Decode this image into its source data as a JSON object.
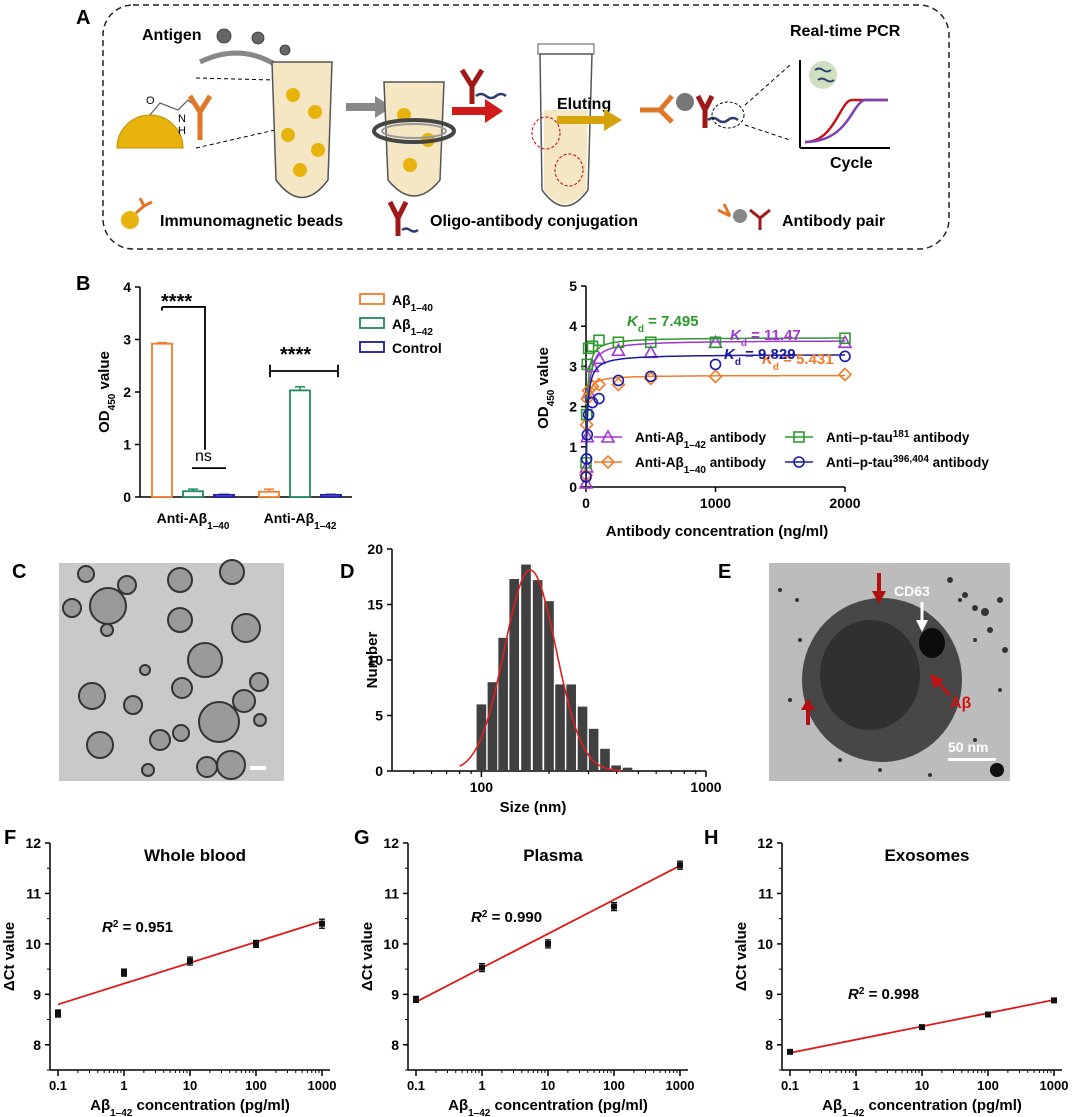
{
  "panels": {
    "A": {
      "letter": "A",
      "antigen_label": "Antigen",
      "eluting_label": "Eluting",
      "pcr_title": "Real-time PCR",
      "pcr_xlabel": "Cycle",
      "legend": [
        "Immunomagnetic beads",
        "Oligo-antibody conjugation",
        "Antibody pair"
      ],
      "chem_labels": [
        "O",
        "N",
        "H"
      ]
    },
    "B": {
      "letter": "B"
    },
    "C": {
      "letter": "C"
    },
    "D": {
      "letter": "D"
    },
    "E": {
      "letter": "E",
      "labels": {
        "cd63": "CD63",
        "abeta": "Aβ",
        "scale": "50 nm"
      }
    },
    "F": {
      "letter": "F"
    },
    "G": {
      "letter": "G"
    },
    "H": {
      "letter": "H"
    }
  },
  "chart_data": [
    {
      "id": "B-bar",
      "type": "bar",
      "ylabel_main": "OD",
      "ylabel_sub": "450",
      "ylabel_rest": " value",
      "ylim": [
        0,
        4
      ],
      "yticks": [
        "0",
        "1",
        "2",
        "3",
        "4"
      ],
      "categories": [
        {
          "main": "Anti-Aβ",
          "sub": "1–40"
        },
        {
          "main": "Anti-Aβ",
          "sub": "1–42"
        }
      ],
      "series": [
        {
          "name_main": "Aβ",
          "name_sub": "1–40",
          "color": "#f07c2a",
          "values": [
            2.92,
            0.1
          ],
          "errors": [
            0.02,
            0.05
          ]
        },
        {
          "name_main": "Aβ",
          "name_sub": "1–42",
          "color": "#1e8a5a",
          "values": [
            0.11,
            2.03
          ],
          "errors": [
            0.04,
            0.07
          ]
        },
        {
          "name_main": "Control",
          "name_sub": "",
          "color": "#1a1aa6",
          "values": [
            0.04,
            0.04
          ],
          "errors": [
            0.01,
            0.01
          ]
        }
      ],
      "annotations": [
        "****",
        "ns",
        "****"
      ]
    },
    {
      "id": "B-binding",
      "type": "scatter",
      "ylabel_main": "OD",
      "ylabel_sub": "450",
      "ylabel_rest": " value",
      "xlabel": "Antibody concentration (ng/ml)",
      "xlim": [
        0,
        2000
      ],
      "ylim": [
        0,
        5
      ],
      "xticks": [
        "0",
        "1000",
        "2000"
      ],
      "yticks": [
        "0",
        "1",
        "2",
        "3",
        "4",
        "5"
      ],
      "series": [
        {
          "name": "Anti-Aβ1-42 antibody",
          "name_main": "Anti-Aβ",
          "name_sub": "1–42",
          "name_rest": " antibody",
          "sub_type": "sub",
          "marker": "triangle",
          "color": "#a335d6",
          "kd": "11.47",
          "x": [
            0,
            5,
            10,
            20,
            50,
            100,
            250,
            500,
            1000,
            2000
          ],
          "y": [
            0.1,
            0.5,
            1.25,
            2.35,
            3.0,
            3.2,
            3.4,
            3.35,
            3.6,
            3.6
          ],
          "fit": {
            "bmax": 3.65,
            "kd": 11.47
          }
        },
        {
          "name": "Anti-Aβ1-40 antibody",
          "name_main": "Anti-Aβ",
          "name_sub": "1–40",
          "name_rest": " antibody",
          "sub_type": "sub",
          "marker": "diamond",
          "color": "#f07c2a",
          "kd": "5.431",
          "x": [
            0,
            5,
            10,
            20,
            50,
            100,
            250,
            500,
            1000,
            2000
          ],
          "y": [
            0.3,
            1.55,
            2.2,
            2.4,
            2.5,
            2.55,
            2.55,
            2.7,
            2.75,
            2.8
          ],
          "fit": {
            "bmax": 2.78,
            "kd": 5.431
          }
        },
        {
          "name": "Anti-p-tau181 antibody",
          "name_main": "Anti–p-tau",
          "name_sub": "181",
          "name_rest": " antibody",
          "sub_type": "sup",
          "marker": "square",
          "color": "#2e9a2e",
          "kd": "7.495",
          "x": [
            0,
            5,
            10,
            20,
            50,
            100,
            250,
            500,
            1000,
            2000
          ],
          "y": [
            0.6,
            1.8,
            3.05,
            3.45,
            3.5,
            3.65,
            3.6,
            3.6,
            3.6,
            3.7
          ],
          "fit": {
            "bmax": 3.72,
            "kd": 7.495
          }
        },
        {
          "name": "Anti-p-tau396,404 antibody",
          "name_main": "Anti–p-tau",
          "name_sub": "396,404",
          "name_rest": " antibody",
          "sub_type": "sup",
          "marker": "circle",
          "color": "#1a1aa6",
          "kd": "9.829",
          "x": [
            0,
            5,
            10,
            20,
            50,
            100,
            250,
            500,
            1000,
            2000
          ],
          "y": [
            0.25,
            0.7,
            1.3,
            1.8,
            2.1,
            2.2,
            2.65,
            2.75,
            3.05,
            3.25
          ],
          "fit": {
            "bmax": 3.3,
            "kd": 9.829
          }
        }
      ]
    },
    {
      "id": "D-hist",
      "type": "bar",
      "xlabel": "Size (nm)",
      "ylabel": "Number",
      "xscale": "log",
      "xlim": [
        40,
        1000
      ],
      "ylim": [
        0,
        20
      ],
      "xticks": [
        "100",
        "1000"
      ],
      "yticks": [
        "0",
        "5",
        "10",
        "15",
        "20"
      ],
      "bins": [
        100,
        112,
        125,
        140,
        158,
        178,
        200,
        224,
        251,
        282,
        316,
        355,
        398,
        447
      ],
      "counts": [
        6,
        8,
        12,
        17.3,
        18.6,
        17.2,
        15.3,
        7.8,
        7.8,
        5.8,
        3.8,
        2,
        0.5,
        0.3
      ],
      "fit_type": "gaussian",
      "fit_peak": 18.1,
      "fit_center": 165,
      "fit_color": "#e02020"
    },
    {
      "id": "F-line",
      "type": "scatter",
      "title": "Whole blood",
      "r2_label": "R",
      "r2_value": "= 0.951",
      "xlabel_main": "Aβ",
      "xlabel_sub": "1–42",
      "xlabel_rest": " concentration (pg/ml)",
      "ylabel": "ΔCt value",
      "xscale": "log",
      "xlim": [
        0.1,
        1000
      ],
      "ylim": [
        7.5,
        12
      ],
      "xticks": [
        "0.1",
        "1",
        "10",
        "100",
        "1000"
      ],
      "yticks": [
        "8",
        "9",
        "10",
        "11",
        "12"
      ],
      "x": [
        0.1,
        1,
        10,
        100,
        1000
      ],
      "y": [
        8.62,
        9.43,
        9.66,
        10.0,
        10.4
      ],
      "errors": [
        0.07,
        0.07,
        0.08,
        0.07,
        0.09
      ],
      "fit": [
        [
          0.1,
          8.8
        ],
        [
          1000,
          10.45
        ]
      ]
    },
    {
      "id": "G-line",
      "type": "scatter",
      "title": "Plasma",
      "r2_label": "R",
      "r2_value": "= 0.990",
      "xlabel_main": "Aβ",
      "xlabel_sub": "1–42",
      "xlabel_rest": " concentration (pg/ml)",
      "ylabel": "ΔCt value",
      "xscale": "log",
      "xlim": [
        0.1,
        1000
      ],
      "ylim": [
        7.5,
        12
      ],
      "xticks": [
        "0.1",
        "1",
        "10",
        "100",
        "1000"
      ],
      "yticks": [
        "8",
        "9",
        "10",
        "11",
        "12"
      ],
      "x": [
        0.1,
        1,
        10,
        100,
        1000
      ],
      "y": [
        8.9,
        9.53,
        10.0,
        10.74,
        11.56
      ],
      "errors": [
        0.06,
        0.08,
        0.08,
        0.08,
        0.08
      ],
      "fit": [
        [
          0.1,
          8.85
        ],
        [
          1000,
          11.55
        ]
      ]
    },
    {
      "id": "H-line",
      "type": "scatter",
      "title": "Exosomes",
      "r2_label": "R",
      "r2_value": "= 0.998",
      "xlabel_main": "Aβ",
      "xlabel_sub": "1–42",
      "xlabel_rest": " concentration (pg/ml)",
      "ylabel": "ΔCt value",
      "xscale": "log",
      "xlim": [
        0.1,
        1000
      ],
      "ylim": [
        7.5,
        12
      ],
      "xticks": [
        "0.1",
        "1",
        "10",
        "100",
        "1000"
      ],
      "yticks": [
        "8",
        "9",
        "10",
        "11",
        "12"
      ],
      "x": [
        0.1,
        10,
        100,
        1000
      ],
      "y": [
        7.86,
        8.35,
        8.6,
        8.88
      ],
      "errors": [
        0.02,
        0.03,
        0.03,
        0.03
      ],
      "fit": [
        [
          0.1,
          7.84
        ],
        [
          1000,
          8.89
        ]
      ]
    }
  ]
}
